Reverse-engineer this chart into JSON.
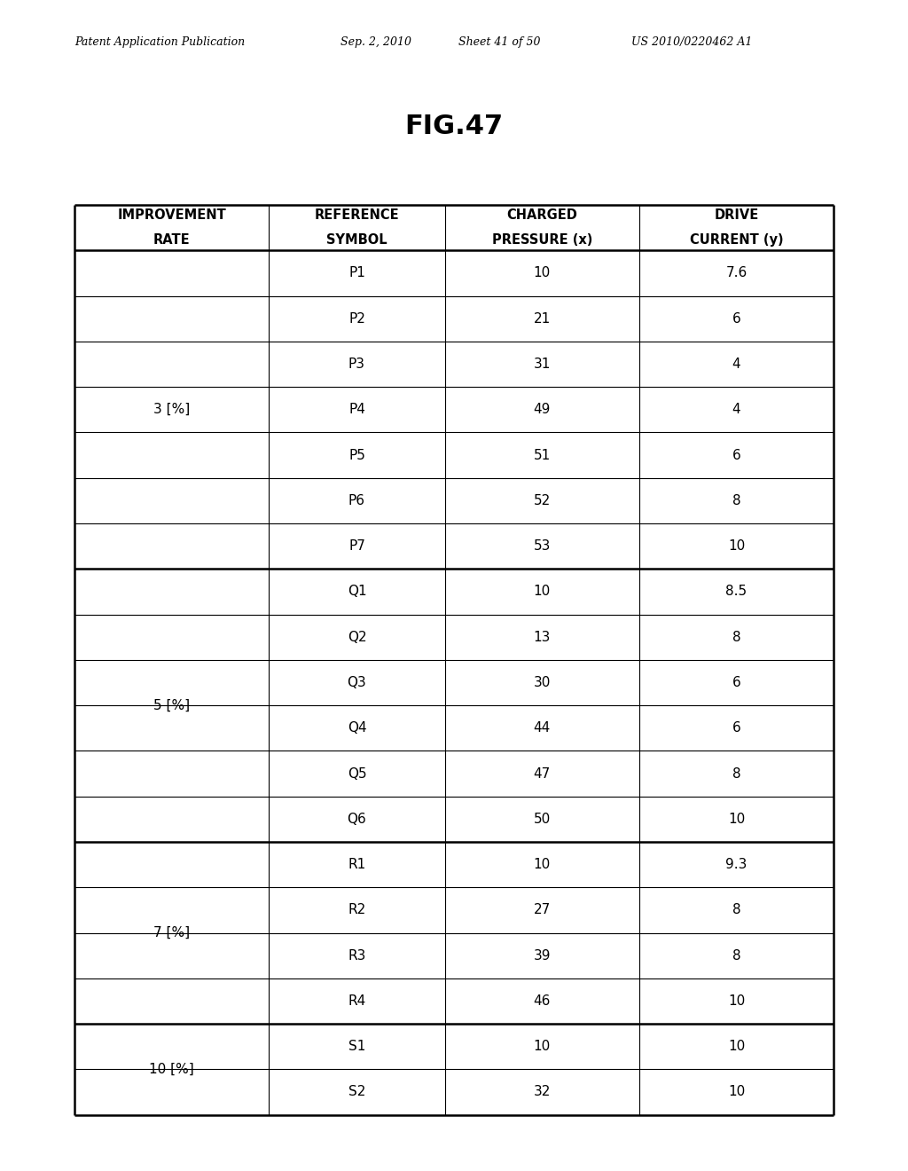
{
  "headers": [
    [
      "IMPROVEMENT",
      "RATE"
    ],
    [
      "REFERENCE",
      "SYMBOL"
    ],
    [
      "CHARGED",
      "PRESSURE (x)"
    ],
    [
      "DRIVE",
      "CURRENT (y)"
    ]
  ],
  "groups": [
    {
      "rate": "3 [%]",
      "rows": [
        [
          "P1",
          "10",
          "7.6"
        ],
        [
          "P2",
          "21",
          "6"
        ],
        [
          "P3",
          "31",
          "4"
        ],
        [
          "P4",
          "49",
          "4"
        ],
        [
          "P5",
          "51",
          "6"
        ],
        [
          "P6",
          "52",
          "8"
        ],
        [
          "P7",
          "53",
          "10"
        ]
      ]
    },
    {
      "rate": "5 [%]",
      "rows": [
        [
          "Q1",
          "10",
          "8.5"
        ],
        [
          "Q2",
          "13",
          "8"
        ],
        [
          "Q3",
          "30",
          "6"
        ],
        [
          "Q4",
          "44",
          "6"
        ],
        [
          "Q5",
          "47",
          "8"
        ],
        [
          "Q6",
          "50",
          "10"
        ]
      ]
    },
    {
      "rate": "7 [%]",
      "rows": [
        [
          "R1",
          "10",
          "9.3"
        ],
        [
          "R2",
          "27",
          "8"
        ],
        [
          "R3",
          "39",
          "8"
        ],
        [
          "R4",
          "46",
          "10"
        ]
      ]
    },
    {
      "rate": "10 [%]",
      "rows": [
        [
          "S1",
          "10",
          "10"
        ],
        [
          "S2",
          "32",
          "10"
        ]
      ]
    }
  ],
  "header_text": "Patent Application Publication",
  "date_text": "Sep. 2, 2010",
  "sheet_text": "Sheet 41 of 50",
  "patent_text": "US 2010/0220462 A1",
  "fig_title": "FIG.47",
  "background_color": "#ffffff",
  "text_color": "#000000",
  "line_color": "#000000"
}
